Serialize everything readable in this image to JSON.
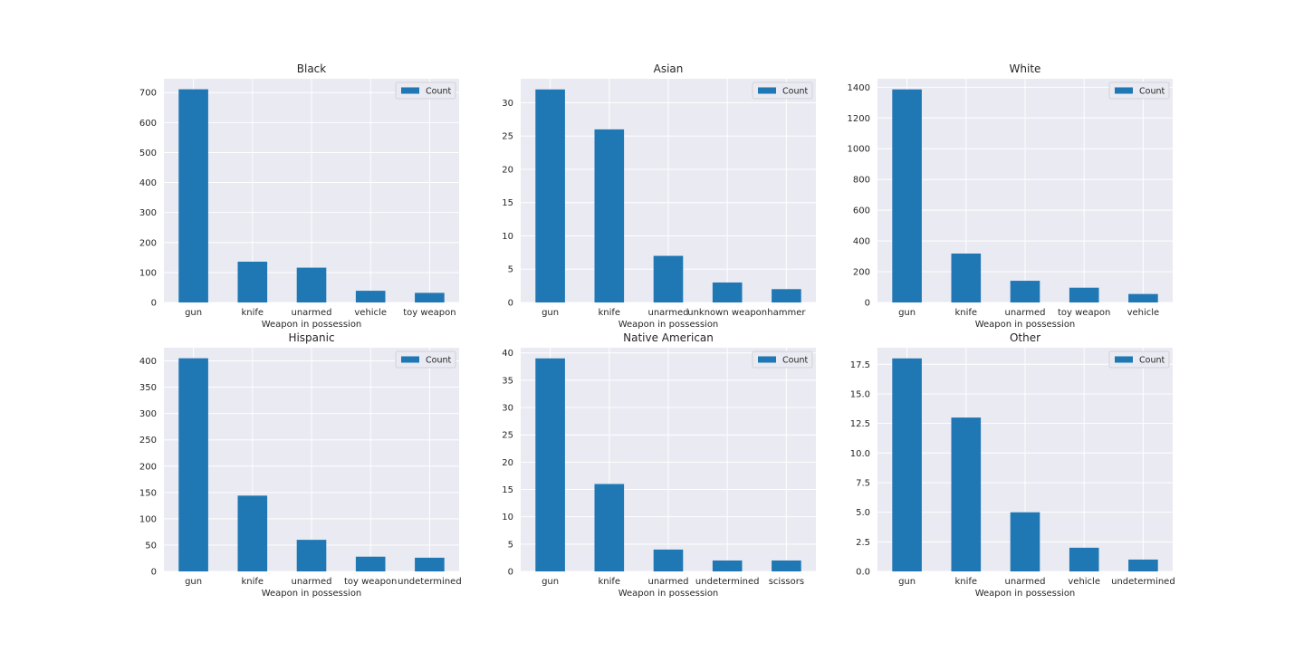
{
  "chart_data": [
    {
      "type": "bar",
      "title": "Black",
      "xlabel": "Weapon in possession",
      "ylabel": "",
      "categories": [
        "gun",
        "knife",
        "unarmed",
        "vehicle",
        "toy weapon"
      ],
      "series": [
        {
          "name": "Count",
          "values": [
            711,
            136,
            116,
            39,
            32
          ]
        }
      ],
      "ylim": [
        0,
        746
      ],
      "yticks": [
        0,
        100,
        200,
        300,
        400,
        500,
        600,
        700
      ],
      "legend": "top-right",
      "grid": true
    },
    {
      "type": "bar",
      "title": "Asian",
      "xlabel": "Weapon in possession",
      "ylabel": "",
      "categories": [
        "gun",
        "knife",
        "unarmed",
        "unknown weapon",
        "hammer"
      ],
      "series": [
        {
          "name": "Count",
          "values": [
            32,
            26,
            7,
            3,
            2
          ]
        }
      ],
      "ylim": [
        0,
        33.6
      ],
      "yticks": [
        0,
        5,
        10,
        15,
        20,
        25,
        30
      ],
      "legend": "top-right",
      "grid": true
    },
    {
      "type": "bar",
      "title": "White",
      "xlabel": "Weapon in possession",
      "ylabel": "",
      "categories": [
        "gun",
        "knife",
        "unarmed",
        "toy weapon",
        "vehicle"
      ],
      "series": [
        {
          "name": "Count",
          "values": [
            1386,
            318,
            141,
            96,
            55
          ]
        }
      ],
      "ylim": [
        0,
        1455
      ],
      "yticks": [
        0,
        200,
        400,
        600,
        800,
        1000,
        1200,
        1400
      ],
      "legend": "top-right",
      "grid": true
    },
    {
      "type": "bar",
      "title": "Hispanic",
      "xlabel": "Weapon in possession",
      "ylabel": "",
      "categories": [
        "gun",
        "knife",
        "unarmed",
        "toy weapon",
        "undetermined"
      ],
      "series": [
        {
          "name": "Count",
          "values": [
            405,
            144,
            60,
            28,
            26
          ]
        }
      ],
      "ylim": [
        0,
        425
      ],
      "yticks": [
        0,
        50,
        100,
        150,
        200,
        250,
        300,
        350,
        400
      ],
      "legend": "top-right",
      "grid": true
    },
    {
      "type": "bar",
      "title": "Native American",
      "xlabel": "Weapon in possession",
      "ylabel": "",
      "categories": [
        "gun",
        "knife",
        "unarmed",
        "undetermined",
        "scissors"
      ],
      "series": [
        {
          "name": "Count",
          "values": [
            39,
            16,
            4,
            2,
            2
          ]
        }
      ],
      "ylim": [
        0,
        40.95
      ],
      "yticks": [
        0,
        5,
        10,
        15,
        20,
        25,
        30,
        35,
        40
      ],
      "legend": "top-right",
      "grid": true
    },
    {
      "type": "bar",
      "title": "Other",
      "xlabel": "Weapon in possession",
      "ylabel": "",
      "categories": [
        "gun",
        "knife",
        "unarmed",
        "vehicle",
        "undetermined"
      ],
      "series": [
        {
          "name": "Count",
          "values": [
            18,
            13,
            5,
            2,
            1
          ]
        }
      ],
      "ylim": [
        0,
        18.9
      ],
      "yticks": [
        0,
        2.5,
        5,
        7.5,
        10,
        12.5,
        15,
        17.5
      ],
      "ytick_labels": [
        "0.0",
        "2.5",
        "5.0",
        "7.5",
        "10.0",
        "12.5",
        "15.0",
        "17.5"
      ],
      "legend": "top-right",
      "grid": true
    }
  ],
  "colors": {
    "bar": "#1f77b4",
    "axes_bg": "#eaeaf2",
    "grid": "#ffffff",
    "text": "#262626"
  }
}
